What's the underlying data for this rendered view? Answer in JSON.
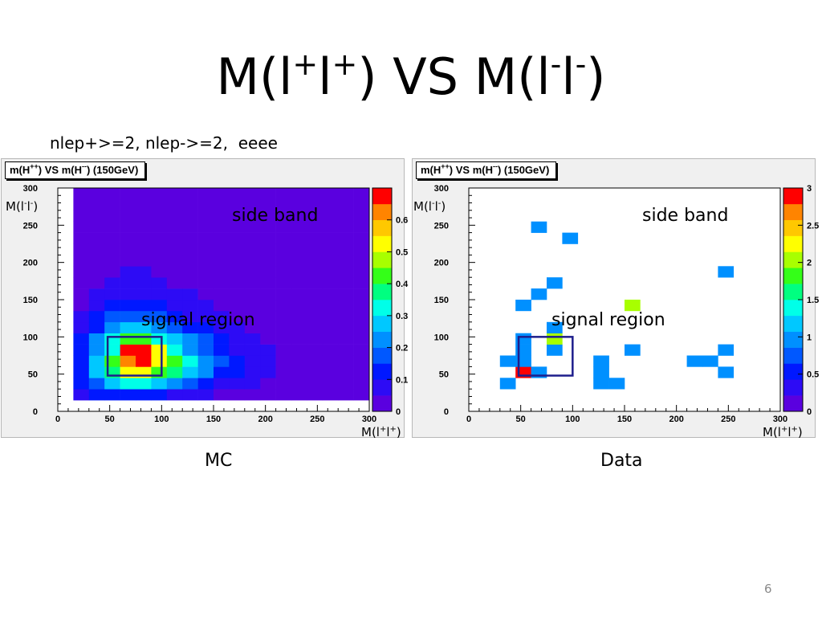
{
  "slide": {
    "title_base": "M(l",
    "title_sup1": "+",
    "title_mid": "l",
    "title_sup2": "+",
    "title_vs": ") VS M(l",
    "title_sup3": "-",
    "title_mid2": "l",
    "title_sup4": "-",
    "title_end": ")",
    "cuts": "nlep+>=2, nlep->=2,  eeee",
    "page_number": "6"
  },
  "colors": {
    "frame_background": "#f0f0f0",
    "plot_background": "#ffffff",
    "signal_box": "#1e1e8c",
    "root_palette": [
      "#5a00df",
      "#2d0bf5",
      "#0018ff",
      "#0058ff",
      "#0090ff",
      "#00c8ff",
      "#00ffe8",
      "#00ff80",
      "#34ff18",
      "#a8ff00",
      "#ffff00",
      "#ffc800",
      "#ff8400",
      "#ff0000"
    ]
  },
  "chart_data": [
    {
      "type": "heatmap",
      "panel": "MC",
      "title_prefix": "m(H",
      "title_sup1": "++",
      "title_mid": ") VS m(H",
      "title_sup2": "--",
      "title_suffix": ") (150GeV)",
      "caption": "MC",
      "xlabel_base": "M(l",
      "xlabel_sup1": "+",
      "xlabel_mid": "l",
      "xlabel_sup2": "+",
      "xlabel_end": ")",
      "ylabel_base": "M(l",
      "ylabel_sup1": "-",
      "ylabel_mid": "l",
      "ylabel_sup2": "-",
      "ylabel_end": ")",
      "xlim": [
        0,
        300
      ],
      "ylim": [
        0,
        300
      ],
      "bin_width": 15,
      "zlim": [
        0,
        0.7
      ],
      "xticks": [
        0,
        50,
        100,
        150,
        200,
        250,
        300
      ],
      "yticks": [
        0,
        50,
        100,
        150,
        200,
        250,
        300
      ],
      "xticks_text": [
        "0",
        "50",
        "100",
        "150",
        "200",
        "250",
        "300"
      ],
      "yticks_text": [
        "0",
        "50",
        "100",
        "150",
        "200",
        "250",
        "300"
      ],
      "zticks": [
        0,
        0.1,
        0.2,
        0.3,
        0.4,
        0.5,
        0.6
      ],
      "zticks_text": [
        "0",
        "0.1",
        "0.2",
        "0.3",
        "0.4",
        "0.5",
        "0.6"
      ],
      "bins_x": [
        15,
        30,
        45,
        60,
        75,
        90,
        105,
        120,
        135,
        150,
        165,
        180,
        195,
        210,
        225,
        240,
        255,
        270,
        285
      ],
      "bins_y": [
        15,
        30,
        45,
        60,
        75,
        90,
        105,
        120,
        135,
        150,
        165,
        180,
        195,
        210,
        225,
        240,
        255,
        270,
        285
      ],
      "z": [
        [
          0.07,
          0.1,
          0.12,
          0.13,
          0.12,
          0.1,
          0.09,
          0.07,
          0.06,
          0.04,
          0.03,
          0.02,
          0.02,
          0.02,
          0.02,
          0.02,
          0.02,
          0.01,
          0.01
        ],
        [
          0.1,
          0.18,
          0.28,
          0.34,
          0.32,
          0.27,
          0.2,
          0.15,
          0.11,
          0.09,
          0.06,
          0.05,
          0.04,
          0.03,
          0.03,
          0.03,
          0.02,
          0.02,
          0.02
        ],
        [
          0.12,
          0.25,
          0.38,
          0.5,
          0.52,
          0.44,
          0.36,
          0.28,
          0.2,
          0.14,
          0.1,
          0.07,
          0.05,
          0.04,
          0.03,
          0.03,
          0.02,
          0.02,
          0.02
        ],
        [
          0.12,
          0.27,
          0.4,
          0.62,
          0.7,
          0.52,
          0.4,
          0.3,
          0.22,
          0.15,
          0.1,
          0.07,
          0.05,
          0.04,
          0.03,
          0.03,
          0.02,
          0.02,
          0.02
        ],
        [
          0.11,
          0.24,
          0.33,
          0.7,
          0.7,
          0.53,
          0.34,
          0.24,
          0.17,
          0.12,
          0.08,
          0.06,
          0.05,
          0.04,
          0.03,
          0.02,
          0.02,
          0.02,
          0.01
        ],
        [
          0.1,
          0.2,
          0.3,
          0.4,
          0.42,
          0.34,
          0.27,
          0.2,
          0.15,
          0.1,
          0.07,
          0.05,
          0.04,
          0.03,
          0.03,
          0.02,
          0.02,
          0.02,
          0.01
        ],
        [
          0.07,
          0.13,
          0.2,
          0.25,
          0.27,
          0.22,
          0.17,
          0.13,
          0.1,
          0.07,
          0.05,
          0.04,
          0.03,
          0.03,
          0.02,
          0.02,
          0.02,
          0.01,
          0.01
        ],
        [
          0.06,
          0.1,
          0.15,
          0.18,
          0.18,
          0.15,
          0.12,
          0.09,
          0.07,
          0.05,
          0.04,
          0.03,
          0.03,
          0.02,
          0.02,
          0.02,
          0.01,
          0.01,
          0.01
        ],
        [
          0.04,
          0.07,
          0.1,
          0.12,
          0.12,
          0.1,
          0.08,
          0.06,
          0.05,
          0.04,
          0.03,
          0.02,
          0.02,
          0.02,
          0.01,
          0.01,
          0.01,
          0.01,
          0.01
        ],
        [
          0.03,
          0.05,
          0.07,
          0.08,
          0.08,
          0.07,
          0.06,
          0.05,
          0.04,
          0.03,
          0.02,
          0.02,
          0.02,
          0.01,
          0.01,
          0.01,
          0.01,
          0.01,
          0.01
        ],
        [
          0.02,
          0.04,
          0.05,
          0.06,
          0.06,
          0.05,
          0.04,
          0.04,
          0.03,
          0.02,
          0.02,
          0.02,
          0.01,
          0.01,
          0.01,
          0.01,
          0.01,
          0.01,
          0.01
        ],
        [
          0.02,
          0.03,
          0.04,
          0.05,
          0.05,
          0.04,
          0.03,
          0.03,
          0.02,
          0.02,
          0.02,
          0.01,
          0.01,
          0.01,
          0.01,
          0.01,
          0.01,
          0.01,
          0.01
        ],
        [
          0.01,
          0.02,
          0.03,
          0.04,
          0.04,
          0.03,
          0.03,
          0.02,
          0.02,
          0.02,
          0.01,
          0.01,
          0.01,
          0.01,
          0.01,
          0.01,
          0.01,
          0.01,
          0.01
        ],
        [
          0.01,
          0.02,
          0.03,
          0.03,
          0.03,
          0.03,
          0.02,
          0.02,
          0.02,
          0.01,
          0.01,
          0.01,
          0.01,
          0.01,
          0.01,
          0.01,
          0.01,
          0.01,
          0.01
        ],
        [
          0.01,
          0.02,
          0.02,
          0.03,
          0.03,
          0.02,
          0.02,
          0.02,
          0.01,
          0.01,
          0.01,
          0.01,
          0.01,
          0.01,
          0.01,
          0.01,
          0.01,
          0.01,
          0.01
        ],
        [
          0.01,
          0.01,
          0.02,
          0.02,
          0.02,
          0.02,
          0.02,
          0.01,
          0.01,
          0.01,
          0.01,
          0.01,
          0.01,
          0.01,
          0.01,
          0.01,
          0.01,
          0.01,
          0.01
        ],
        [
          0.01,
          0.01,
          0.02,
          0.02,
          0.02,
          0.02,
          0.01,
          0.01,
          0.01,
          0.01,
          0.01,
          0.01,
          0.01,
          0.01,
          0.01,
          0.01,
          0.01,
          0.01,
          0.01
        ],
        [
          0.01,
          0.01,
          0.01,
          0.02,
          0.02,
          0.01,
          0.01,
          0.01,
          0.01,
          0.01,
          0.01,
          0.01,
          0.01,
          0.01,
          0.01,
          0.01,
          0.01,
          0.01,
          0.01
        ],
        [
          0.01,
          0.01,
          0.01,
          0.01,
          0.01,
          0.01,
          0.01,
          0.01,
          0.01,
          0.01,
          0.01,
          0.01,
          0.01,
          0.01,
          0.01,
          0.01,
          0.01,
          0.01,
          0.01
        ]
      ],
      "signal_region": {
        "x": [
          48,
          100
        ],
        "y": [
          48,
          100
        ],
        "label": "signal region"
      },
      "side_band_label": "side band"
    },
    {
      "type": "heatmap",
      "panel": "Data",
      "title_prefix": "m(H",
      "title_sup1": "++",
      "title_mid": ") VS m(H",
      "title_sup2": "--",
      "title_suffix": ") (150GeV)",
      "caption": "Data",
      "xlabel_base": "M(l",
      "xlabel_sup1": "+",
      "xlabel_mid": "l",
      "xlabel_sup2": "+",
      "xlabel_end": ")",
      "ylabel_base": "M(l",
      "ylabel_sup1": "-",
      "ylabel_mid": "l",
      "ylabel_sup2": "-",
      "ylabel_end": ")",
      "xlim": [
        0,
        300
      ],
      "ylim": [
        0,
        300
      ],
      "bin_width": 15,
      "zlim": [
        0,
        3
      ],
      "xticks": [
        0,
        50,
        100,
        150,
        200,
        250,
        300
      ],
      "yticks": [
        0,
        50,
        100,
        150,
        200,
        250,
        300
      ],
      "xticks_text": [
        "0",
        "50",
        "100",
        "150",
        "200",
        "250",
        "300"
      ],
      "yticks_text": [
        "0",
        "50",
        "100",
        "150",
        "200",
        "250",
        "300"
      ],
      "zticks": [
        0,
        0.5,
        1,
        1.5,
        2,
        2.5,
        3
      ],
      "zticks_text": [
        "0",
        "0.5",
        "1",
        "1.5",
        "2",
        "2.5",
        "3"
      ],
      "cells": [
        {
          "x": 30,
          "y": 30,
          "z": 1
        },
        {
          "x": 45,
          "y": 45,
          "z": 3
        },
        {
          "x": 60,
          "y": 45,
          "z": 1
        },
        {
          "x": 30,
          "y": 60,
          "z": 1
        },
        {
          "x": 45,
          "y": 60,
          "z": 1
        },
        {
          "x": 45,
          "y": 75,
          "z": 1
        },
        {
          "x": 75,
          "y": 75,
          "z": 1
        },
        {
          "x": 45,
          "y": 90,
          "z": 1
        },
        {
          "x": 75,
          "y": 90,
          "z": 2
        },
        {
          "x": 75,
          "y": 105,
          "z": 1
        },
        {
          "x": 45,
          "y": 135,
          "z": 1
        },
        {
          "x": 60,
          "y": 150,
          "z": 1
        },
        {
          "x": 75,
          "y": 165,
          "z": 1
        },
        {
          "x": 60,
          "y": 240,
          "z": 1
        },
        {
          "x": 90,
          "y": 225,
          "z": 1
        },
        {
          "x": 120,
          "y": 30,
          "z": 1
        },
        {
          "x": 135,
          "y": 30,
          "z": 1
        },
        {
          "x": 120,
          "y": 45,
          "z": 1
        },
        {
          "x": 120,
          "y": 60,
          "z": 1
        },
        {
          "x": 150,
          "y": 75,
          "z": 1
        },
        {
          "x": 150,
          "y": 135,
          "z": 2
        },
        {
          "x": 210,
          "y": 60,
          "z": 1
        },
        {
          "x": 225,
          "y": 60,
          "z": 1
        },
        {
          "x": 240,
          "y": 75,
          "z": 1
        },
        {
          "x": 240,
          "y": 45,
          "z": 1
        },
        {
          "x": 240,
          "y": 180,
          "z": 1
        }
      ],
      "signal_region": {
        "x": [
          48,
          100
        ],
        "y": [
          48,
          100
        ],
        "label": "signal region"
      },
      "side_band_label": "side band"
    }
  ]
}
